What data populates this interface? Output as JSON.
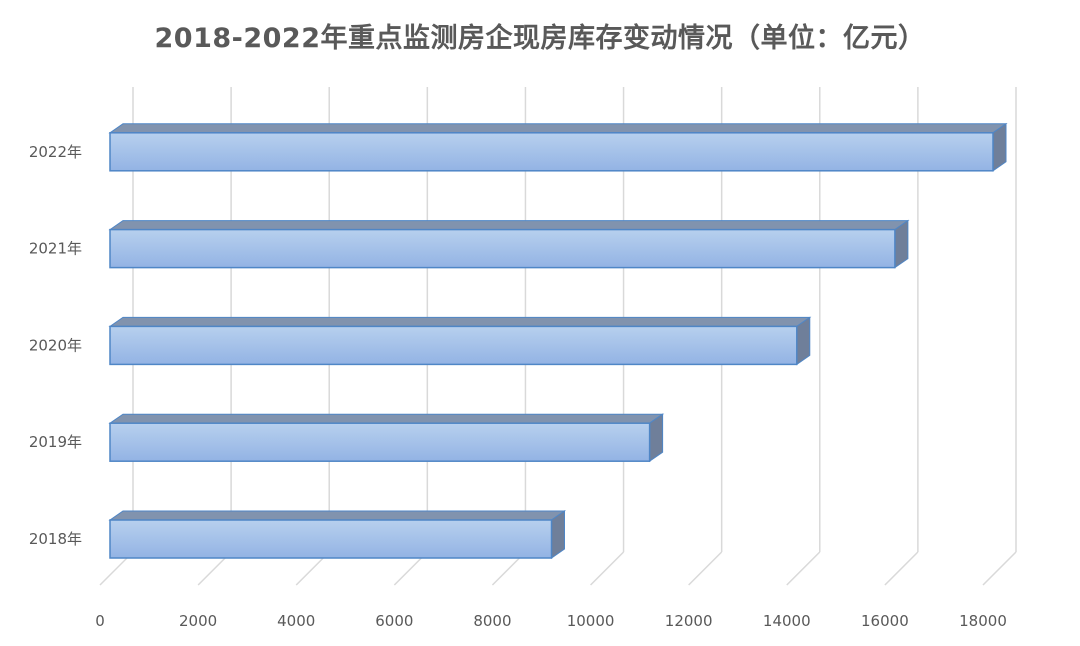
{
  "chart_data": {
    "type": "bar",
    "orientation": "horizontal",
    "style": "3d",
    "title": "2018-2022年重点监测房企现房库存变动情况（单位：亿元）",
    "categories": [
      "2018年",
      "2019年",
      "2020年",
      "2021年",
      "2022年"
    ],
    "values": [
      9000,
      11000,
      14000,
      16000,
      18000
    ],
    "xlim": [
      0,
      18000
    ],
    "x_ticks": [
      "0",
      "2000",
      "4000",
      "6000",
      "8000",
      "10000",
      "12000",
      "14000",
      "16000",
      "18000"
    ],
    "grid": true,
    "legend": "none",
    "colors": {
      "bar_top": "#b7d0ee",
      "bar_bottom": "#93b3e4",
      "bar_edge": "#4f86c6",
      "bar_top_face": "#8193ae",
      "bar_side_face": "#6f7f9a",
      "grid": "#d9d9d9",
      "text": "#595959"
    }
  }
}
